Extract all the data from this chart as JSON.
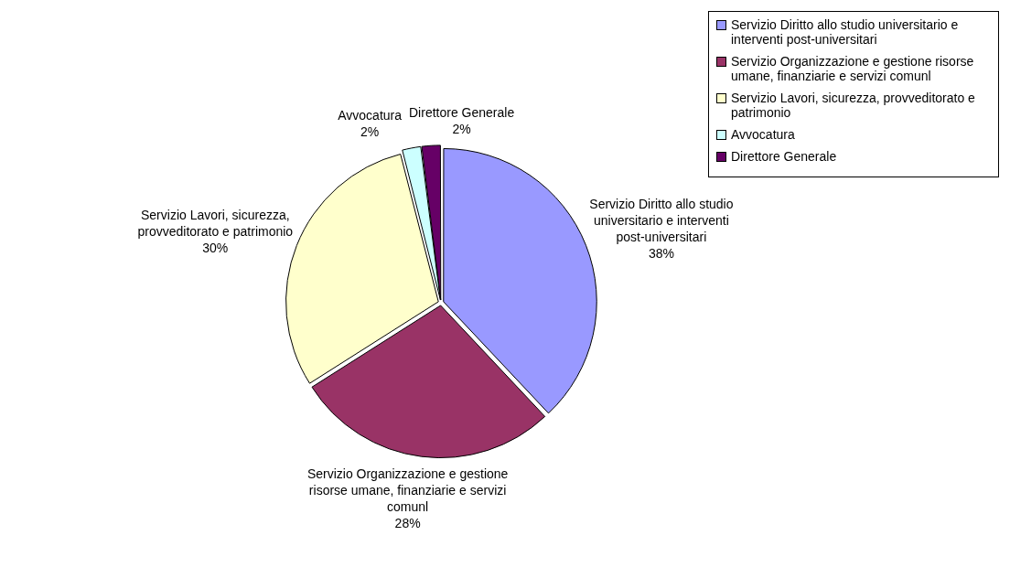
{
  "chart_data": {
    "type": "pie",
    "categories": [
      "Servizio Diritto allo studio universitario e interventi post-universitari",
      "Servizio Organizzazione e gestione risorse umane, finanziarie e servizi comunl",
      "Servizio Lavori, sicurezza, provveditorato e patrimonio",
      "Avvocatura",
      "Direttore Generale"
    ],
    "values": [
      38,
      28,
      30,
      2,
      2
    ],
    "colors": [
      "#9999ff",
      "#993366",
      "#ffffcc",
      "#ccffff",
      "#660066"
    ],
    "value_labels": [
      "38%",
      "28%",
      "30%",
      "2%",
      "2%"
    ],
    "legend": "top right"
  }
}
